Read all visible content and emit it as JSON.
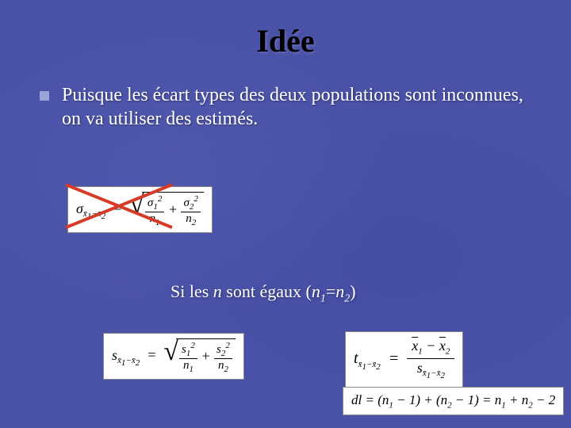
{
  "title": "Idée",
  "bullet_text": "Puisque les écart types des deux populations sont inconnues, on va utiliser des estimés.",
  "subheading_prefix": "Si les ",
  "subheading_n": "n",
  "subheading_mid": " sont égaux (",
  "subheading_eq_lhs_base": "n",
  "subheading_eq_lhs_sub": "1",
  "subheading_eq_op": "=",
  "subheading_eq_rhs_base": "n",
  "subheading_eq_rhs_sub": "2",
  "subheading_suffix": ")",
  "formula1": {
    "lhs": "σ<sub>x̄<sub>1</sub>−x̄<sub>2</sub></sub>",
    "radicand_html": "<span class='frac'><span class='num'>σ<sub>1</sub><sup>2</sup></span><span class='den'>n<sub>1</sub></span></span> + <span class='frac'><span class='num'>σ<sub>2</sub><sup>2</sup></span><span class='den'>n<sub>2</sub></span></span>"
  },
  "formula2": {
    "lhs": "s<sub>x̄<sub>1</sub>−x̄<sub>2</sub></sub>",
    "radicand_html": "<span class='frac'><span class='num'>s<sub>1</sub><sup>2</sup></span><span class='den'>n<sub>1</sub></span></span> + <span class='frac'><span class='num'>s<sub>2</sub><sup>2</sup></span><span class='den'>n<sub>2</sub></span></span>"
  },
  "formula3": {
    "lhs": "t<sub>x̄<sub>1</sub>−x̄<sub>2</sub></sub>",
    "num_html": "<span class='bar'>x</span><sub>1</sub> − <span class='bar'>x</span><sub>2</sub>",
    "den_html": "s<sub>x̄<sub>1</sub>−x̄<sub>2</sub></sub>"
  },
  "formula4_html": "dl = (n<sub>1</sub> − 1) + (n<sub>2</sub> − 1) = n<sub>1</sub> + n<sub>2</sub> − 2",
  "colors": {
    "background": "#4a52a8",
    "title_color": "#000000",
    "text_color": "#ffffff",
    "bullet_color": "#9aa4d8",
    "formula_bg": "#ffffff",
    "cross_color": "#d63b2a"
  },
  "cross": {
    "stroke_width": 4
  }
}
